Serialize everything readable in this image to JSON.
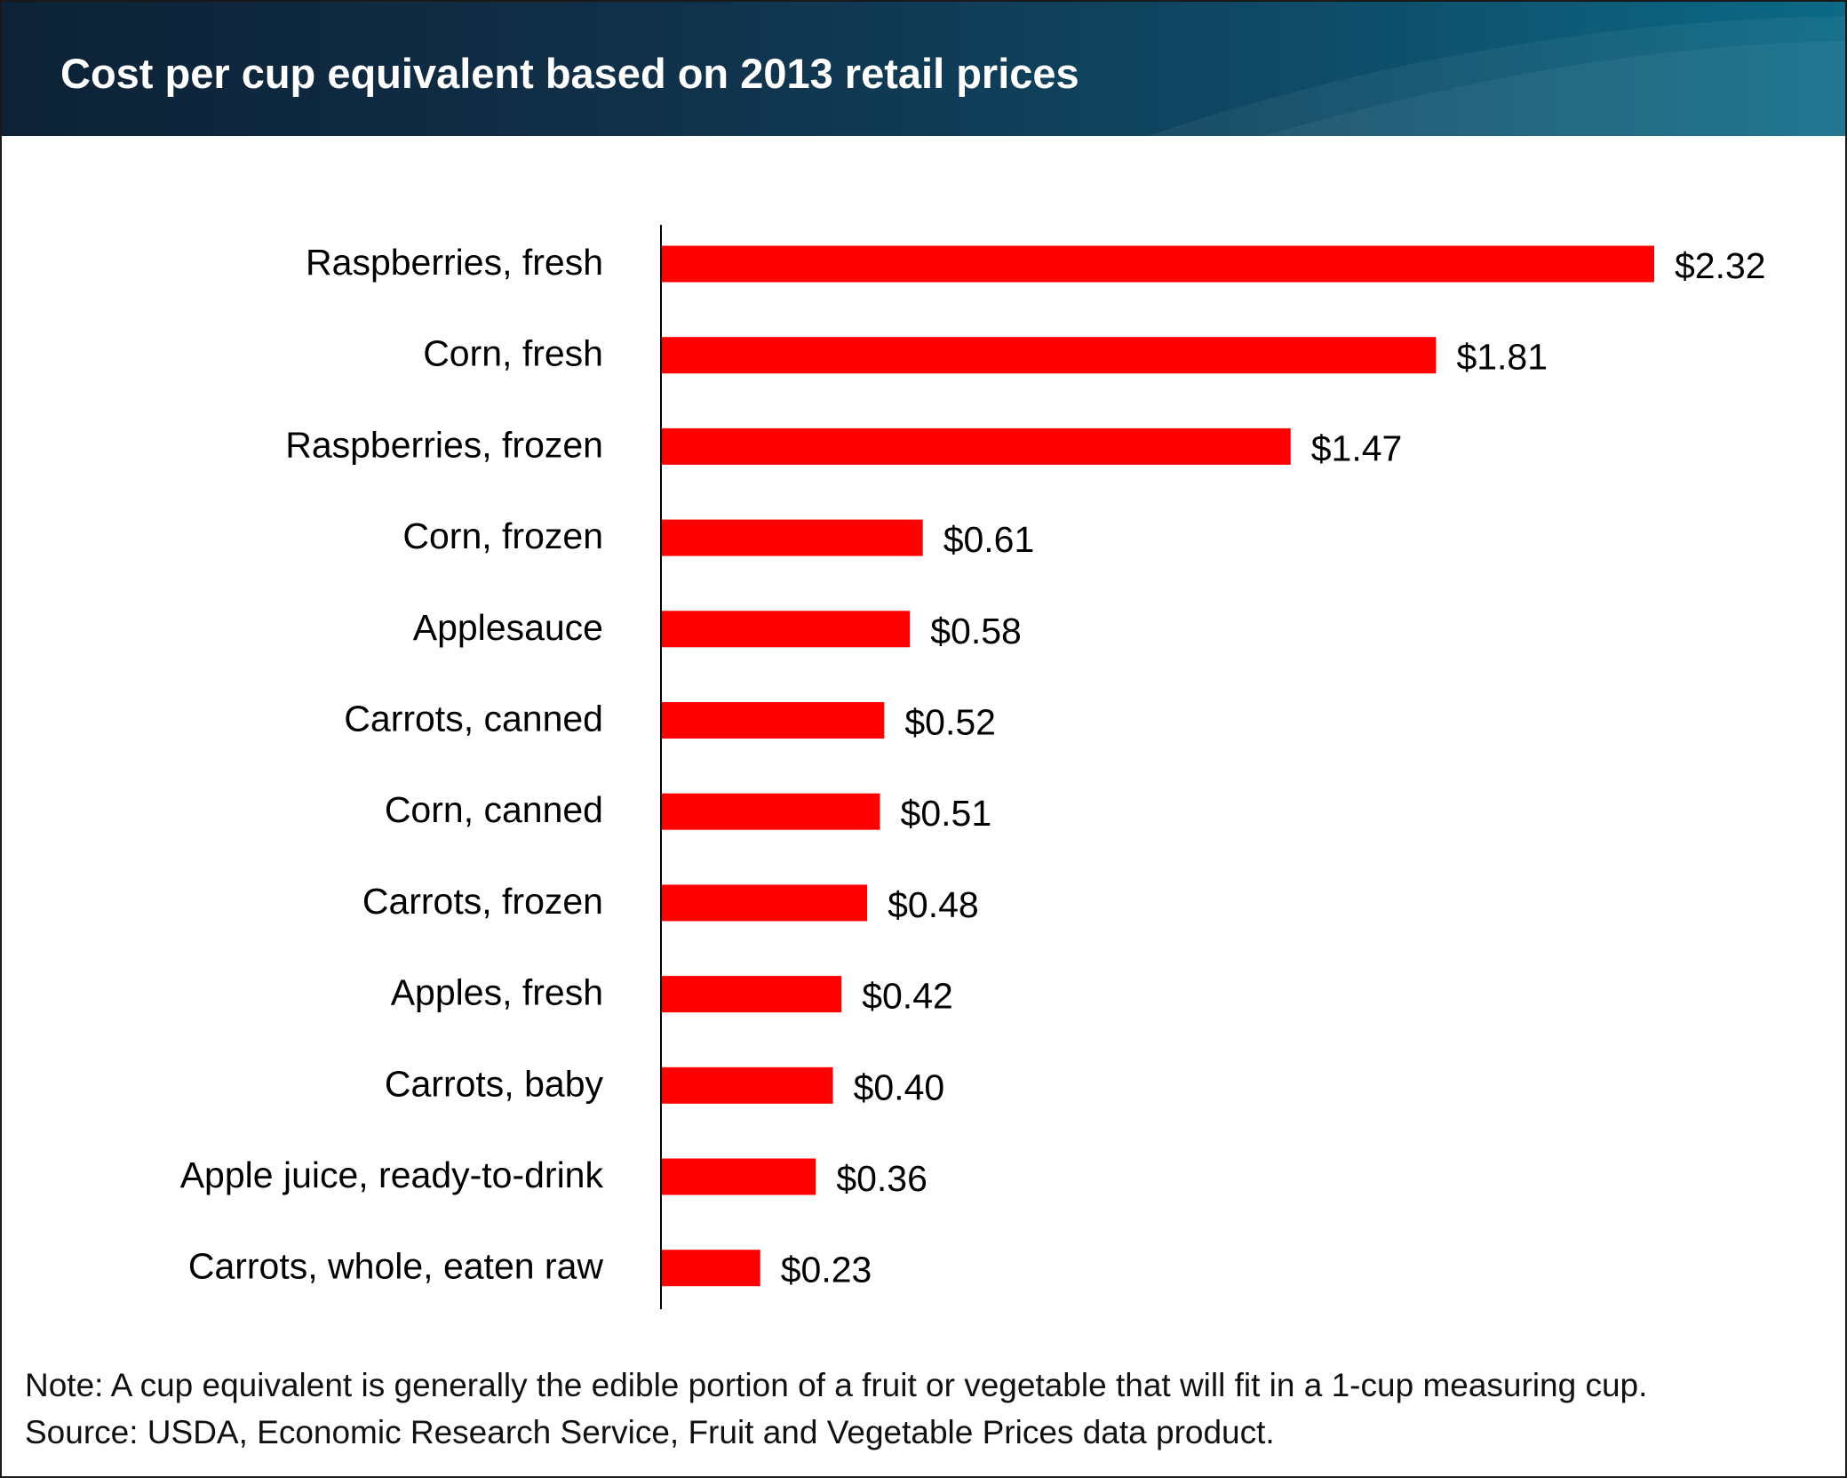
{
  "header": {
    "title": "Cost per cup equivalent based on 2013 retail prices"
  },
  "colors": {
    "bar": "#ff0000",
    "header_dark": "#0d2236",
    "header_light": "#0b6a86",
    "axis": "#000000",
    "text": "#000000"
  },
  "chart_data": {
    "type": "bar",
    "orientation": "horizontal",
    "title": "Cost per cup equivalent based on 2013 retail prices",
    "xlabel": "",
    "ylabel": "",
    "grid": false,
    "legend": "none",
    "xlim": [
      0,
      2.32
    ],
    "categories": [
      "Raspberries, fresh",
      "Corn, fresh",
      "Raspberries, frozen",
      "Corn, frozen",
      "Applesauce",
      "Carrots, canned",
      "Corn, canned",
      "Carrots, frozen",
      "Apples, fresh",
      "Carrots, baby",
      "Apple juice, ready-to-drink",
      "Carrots, whole, eaten raw"
    ],
    "values": [
      2.32,
      1.81,
      1.47,
      0.61,
      0.58,
      0.52,
      0.51,
      0.48,
      0.42,
      0.4,
      0.36,
      0.23
    ],
    "value_labels": [
      "$2.32",
      "$1.81",
      "$1.47",
      "$0.61",
      "$0.58",
      "$0.52",
      "$0.51",
      "$0.48",
      "$0.42",
      "$0.40",
      "$0.36",
      "$0.23"
    ]
  },
  "footnote": {
    "note": "Note: A cup equivalent is generally the edible portion of a fruit or vegetable that will fit in a 1-cup measuring cup.",
    "source": "Source: USDA, Economic Research Service, Fruit and Vegetable Prices data product."
  }
}
